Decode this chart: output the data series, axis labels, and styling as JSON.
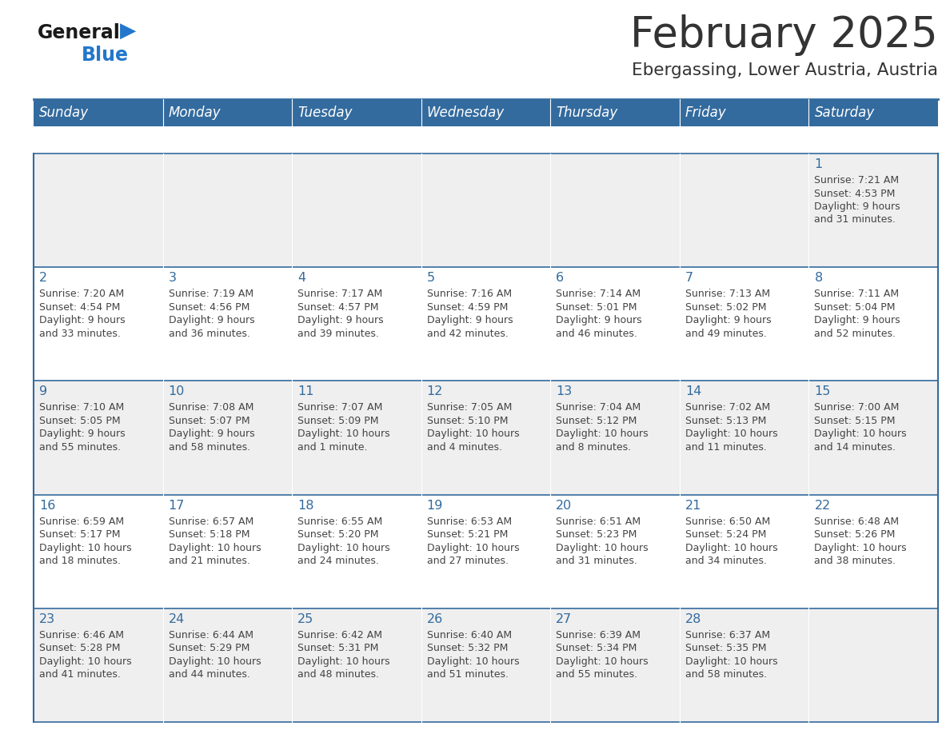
{
  "title": "February 2025",
  "subtitle": "Ebergassing, Lower Austria, Austria",
  "days_of_week": [
    "Sunday",
    "Monday",
    "Tuesday",
    "Wednesday",
    "Thursday",
    "Friday",
    "Saturday"
  ],
  "header_bg": "#336b9e",
  "header_text": "#ffffff",
  "row_bg_odd": "#efefef",
  "row_bg_even": "#ffffff",
  "separator_color": "#336b9e",
  "day_number_color": "#336b9e",
  "text_color": "#444444",
  "logo_general_color": "#1a1a1a",
  "logo_blue_color": "#2277cc",
  "calendar_data": [
    {
      "day": 1,
      "col": 6,
      "row": 0,
      "sunrise": "7:21 AM",
      "sunset": "4:53 PM",
      "daylight_line1": "Daylight: 9 hours",
      "daylight_line2": "and 31 minutes."
    },
    {
      "day": 2,
      "col": 0,
      "row": 1,
      "sunrise": "7:20 AM",
      "sunset": "4:54 PM",
      "daylight_line1": "Daylight: 9 hours",
      "daylight_line2": "and 33 minutes."
    },
    {
      "day": 3,
      "col": 1,
      "row": 1,
      "sunrise": "7:19 AM",
      "sunset": "4:56 PM",
      "daylight_line1": "Daylight: 9 hours",
      "daylight_line2": "and 36 minutes."
    },
    {
      "day": 4,
      "col": 2,
      "row": 1,
      "sunrise": "7:17 AM",
      "sunset": "4:57 PM",
      "daylight_line1": "Daylight: 9 hours",
      "daylight_line2": "and 39 minutes."
    },
    {
      "day": 5,
      "col": 3,
      "row": 1,
      "sunrise": "7:16 AM",
      "sunset": "4:59 PM",
      "daylight_line1": "Daylight: 9 hours",
      "daylight_line2": "and 42 minutes."
    },
    {
      "day": 6,
      "col": 4,
      "row": 1,
      "sunrise": "7:14 AM",
      "sunset": "5:01 PM",
      "daylight_line1": "Daylight: 9 hours",
      "daylight_line2": "and 46 minutes."
    },
    {
      "day": 7,
      "col": 5,
      "row": 1,
      "sunrise": "7:13 AM",
      "sunset": "5:02 PM",
      "daylight_line1": "Daylight: 9 hours",
      "daylight_line2": "and 49 minutes."
    },
    {
      "day": 8,
      "col": 6,
      "row": 1,
      "sunrise": "7:11 AM",
      "sunset": "5:04 PM",
      "daylight_line1": "Daylight: 9 hours",
      "daylight_line2": "and 52 minutes."
    },
    {
      "day": 9,
      "col": 0,
      "row": 2,
      "sunrise": "7:10 AM",
      "sunset": "5:05 PM",
      "daylight_line1": "Daylight: 9 hours",
      "daylight_line2": "and 55 minutes."
    },
    {
      "day": 10,
      "col": 1,
      "row": 2,
      "sunrise": "7:08 AM",
      "sunset": "5:07 PM",
      "daylight_line1": "Daylight: 9 hours",
      "daylight_line2": "and 58 minutes."
    },
    {
      "day": 11,
      "col": 2,
      "row": 2,
      "sunrise": "7:07 AM",
      "sunset": "5:09 PM",
      "daylight_line1": "Daylight: 10 hours",
      "daylight_line2": "and 1 minute."
    },
    {
      "day": 12,
      "col": 3,
      "row": 2,
      "sunrise": "7:05 AM",
      "sunset": "5:10 PM",
      "daylight_line1": "Daylight: 10 hours",
      "daylight_line2": "and 4 minutes."
    },
    {
      "day": 13,
      "col": 4,
      "row": 2,
      "sunrise": "7:04 AM",
      "sunset": "5:12 PM",
      "daylight_line1": "Daylight: 10 hours",
      "daylight_line2": "and 8 minutes."
    },
    {
      "day": 14,
      "col": 5,
      "row": 2,
      "sunrise": "7:02 AM",
      "sunset": "5:13 PM",
      "daylight_line1": "Daylight: 10 hours",
      "daylight_line2": "and 11 minutes."
    },
    {
      "day": 15,
      "col": 6,
      "row": 2,
      "sunrise": "7:00 AM",
      "sunset": "5:15 PM",
      "daylight_line1": "Daylight: 10 hours",
      "daylight_line2": "and 14 minutes."
    },
    {
      "day": 16,
      "col": 0,
      "row": 3,
      "sunrise": "6:59 AM",
      "sunset": "5:17 PM",
      "daylight_line1": "Daylight: 10 hours",
      "daylight_line2": "and 18 minutes."
    },
    {
      "day": 17,
      "col": 1,
      "row": 3,
      "sunrise": "6:57 AM",
      "sunset": "5:18 PM",
      "daylight_line1": "Daylight: 10 hours",
      "daylight_line2": "and 21 minutes."
    },
    {
      "day": 18,
      "col": 2,
      "row": 3,
      "sunrise": "6:55 AM",
      "sunset": "5:20 PM",
      "daylight_line1": "Daylight: 10 hours",
      "daylight_line2": "and 24 minutes."
    },
    {
      "day": 19,
      "col": 3,
      "row": 3,
      "sunrise": "6:53 AM",
      "sunset": "5:21 PM",
      "daylight_line1": "Daylight: 10 hours",
      "daylight_line2": "and 27 minutes."
    },
    {
      "day": 20,
      "col": 4,
      "row": 3,
      "sunrise": "6:51 AM",
      "sunset": "5:23 PM",
      "daylight_line1": "Daylight: 10 hours",
      "daylight_line2": "and 31 minutes."
    },
    {
      "day": 21,
      "col": 5,
      "row": 3,
      "sunrise": "6:50 AM",
      "sunset": "5:24 PM",
      "daylight_line1": "Daylight: 10 hours",
      "daylight_line2": "and 34 minutes."
    },
    {
      "day": 22,
      "col": 6,
      "row": 3,
      "sunrise": "6:48 AM",
      "sunset": "5:26 PM",
      "daylight_line1": "Daylight: 10 hours",
      "daylight_line2": "and 38 minutes."
    },
    {
      "day": 23,
      "col": 0,
      "row": 4,
      "sunrise": "6:46 AM",
      "sunset": "5:28 PM",
      "daylight_line1": "Daylight: 10 hours",
      "daylight_line2": "and 41 minutes."
    },
    {
      "day": 24,
      "col": 1,
      "row": 4,
      "sunrise": "6:44 AM",
      "sunset": "5:29 PM",
      "daylight_line1": "Daylight: 10 hours",
      "daylight_line2": "and 44 minutes."
    },
    {
      "day": 25,
      "col": 2,
      "row": 4,
      "sunrise": "6:42 AM",
      "sunset": "5:31 PM",
      "daylight_line1": "Daylight: 10 hours",
      "daylight_line2": "and 48 minutes."
    },
    {
      "day": 26,
      "col": 3,
      "row": 4,
      "sunrise": "6:40 AM",
      "sunset": "5:32 PM",
      "daylight_line1": "Daylight: 10 hours",
      "daylight_line2": "and 51 minutes."
    },
    {
      "day": 27,
      "col": 4,
      "row": 4,
      "sunrise": "6:39 AM",
      "sunset": "5:34 PM",
      "daylight_line1": "Daylight: 10 hours",
      "daylight_line2": "and 55 minutes."
    },
    {
      "day": 28,
      "col": 5,
      "row": 4,
      "sunrise": "6:37 AM",
      "sunset": "5:35 PM",
      "daylight_line1": "Daylight: 10 hours",
      "daylight_line2": "and 58 minutes."
    }
  ]
}
